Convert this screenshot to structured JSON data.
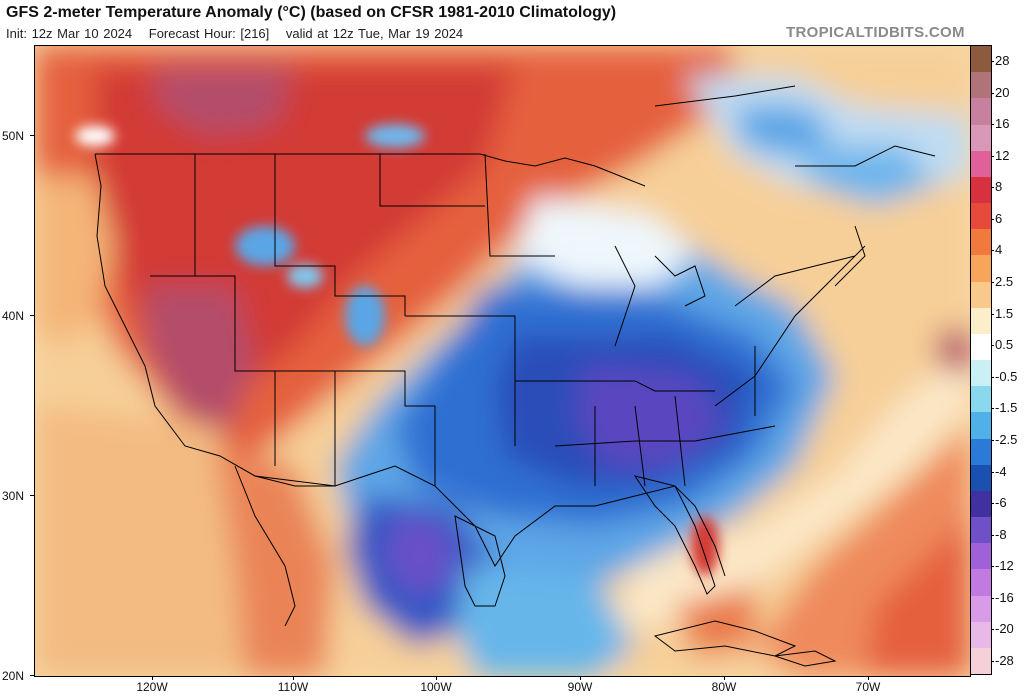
{
  "header": {
    "title": "GFS 2-meter Temperature Anomaly (°C) (based on CFSR 1981-2010 Climatology)",
    "init": "Init: 12z Mar 10 2024",
    "forecast_hour": "Forecast Hour: [216]",
    "valid": "valid at 12z Tue, Mar 19 2024",
    "watermark": "TROPICALTIDBITS.COM"
  },
  "map": {
    "lat_labels": [
      "50N",
      "40N",
      "30N",
      "20N"
    ],
    "lon_labels": [
      "120W",
      "110W",
      "100W",
      "90W",
      "80W",
      "70W"
    ]
  },
  "colorbar": {
    "labels": [
      "28",
      "20",
      "16",
      "12",
      "8",
      "6",
      "4",
      "2.5",
      "1.5",
      "0.5",
      "-0.5",
      "-1.5",
      "-2.5",
      "-4",
      "-6",
      "-8",
      "-12",
      "-16",
      "-20",
      "-28"
    ],
    "colors": [
      "#8c5a3c",
      "#b0737a",
      "#c880a0",
      "#d998b8",
      "#e0609a",
      "#d7303e",
      "#e54a3a",
      "#f07a3e",
      "#f6a55a",
      "#f8c98a",
      "#fbeecb",
      "#ffffff",
      "#c8f0f5",
      "#8ad8ee",
      "#50b0e8",
      "#2c7ad8",
      "#1a50b0",
      "#4030a0",
      "#7050c8",
      "#a060d8",
      "#c07ae0",
      "#d99ae8",
      "#e8b8e8",
      "#f5d0d8"
    ]
  }
}
